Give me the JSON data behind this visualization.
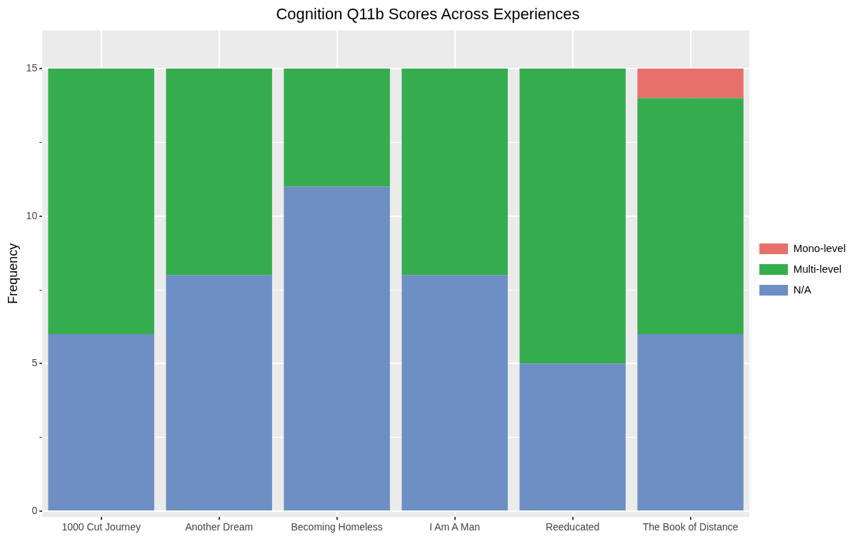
{
  "chart_data": {
    "type": "bar",
    "title": "Cognition Q11b Scores Across Experiences",
    "ylabel": "Frequency",
    "categories": [
      "1000 Cut Journey",
      "Another Dream",
      "Becoming Homeless",
      "I Am A Man",
      "Reeducated",
      "The Book of Distance"
    ],
    "stacked": true,
    "series": [
      {
        "name": "N/A",
        "color": "#6d8fc3",
        "values": [
          6,
          8,
          11,
          8,
          5,
          6
        ]
      },
      {
        "name": "Multi-level",
        "color": "#35ad4f",
        "values": [
          9,
          7,
          4,
          7,
          10,
          8
        ]
      },
      {
        "name": "Mono-level",
        "color": "#e8706a",
        "values": [
          0,
          0,
          0,
          0,
          0,
          1
        ]
      }
    ],
    "ylim": [
      -0.2,
      16.3
    ],
    "yticks": [
      0,
      {
        "value": 2.5,
        "label": null
      },
      5,
      {
        "value": 7.5,
        "label": null
      },
      10,
      {
        "value": 12.5,
        "label": null
      },
      15
    ],
    "grid": true,
    "legend": "right"
  }
}
